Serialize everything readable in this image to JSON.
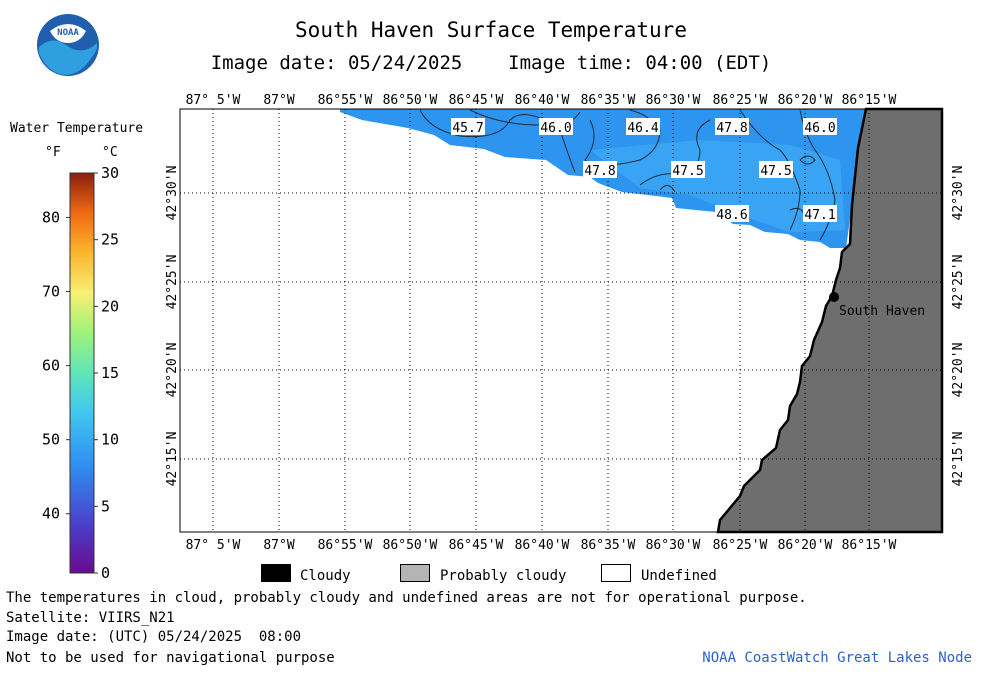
{
  "header": {
    "title": "South Haven Surface Temperature",
    "image_date_label": "Image date: 05/24/2025",
    "image_time_label": "Image time: 04:00 (EDT)"
  },
  "logo": {
    "text": "NOAA",
    "icon": "noaa-logo-icon"
  },
  "colorbar": {
    "title": "Water Temperature",
    "unit_f": "°F",
    "unit_c": "°C",
    "f_ticks": [
      {
        "label": "80",
        "value_f": 80
      },
      {
        "label": "70",
        "value_f": 70
      },
      {
        "label": "60",
        "value_f": 60
      },
      {
        "label": "50",
        "value_f": 50
      },
      {
        "label": "40",
        "value_f": 40
      }
    ],
    "c_ticks": [
      {
        "label": "30",
        "value_c": 30
      },
      {
        "label": "25",
        "value_c": 25
      },
      {
        "label": "20",
        "value_c": 20
      },
      {
        "label": "15",
        "value_c": 15
      },
      {
        "label": "10",
        "value_c": 10
      },
      {
        "label": "5",
        "value_c": 5
      },
      {
        "label": "0",
        "value_c": 0
      }
    ],
    "range_c": [
      0,
      30
    ]
  },
  "map": {
    "lon_labels": [
      "87° 5'W",
      "87°W",
      "86°55'W",
      "86°50'W",
      "86°45'W",
      "86°40'W",
      "86°35'W",
      "86°30'W",
      "86°25'W",
      "86°20'W",
      "86°15'W"
    ],
    "lat_labels": [
      "42°30'N",
      "42°25'N",
      "42°20'N",
      "42°15'N"
    ],
    "temperature_labels": [
      "45.7",
      "46.0",
      "46.4",
      "47.8",
      "46.0",
      "47.8",
      "47.5",
      "47.5",
      "48.6",
      "47.1"
    ],
    "place": {
      "name": "South Haven"
    },
    "colors": {
      "land": "#6e6e6e",
      "water": "#2d95f0",
      "water_light": "#3aa4f4",
      "undefined": "#ffffff"
    }
  },
  "legend": {
    "items": [
      {
        "label": "Cloudy",
        "color": "#000000"
      },
      {
        "label": "Probably cloudy",
        "color": "#b4b4b4"
      },
      {
        "label": "Undefined",
        "color": "#ffffff"
      }
    ]
  },
  "footer": {
    "note": "The temperatures in cloud, probably cloudy and undefined areas are not for operational purpose.",
    "satellite": "Satellite: VIIRS_N21",
    "utc_date": "Image date: (UTC) 05/24/2025  08:00",
    "nav_warning": "Not to be used for navigational purpose",
    "credit": "NOAA CoastWatch Great Lakes Node"
  }
}
